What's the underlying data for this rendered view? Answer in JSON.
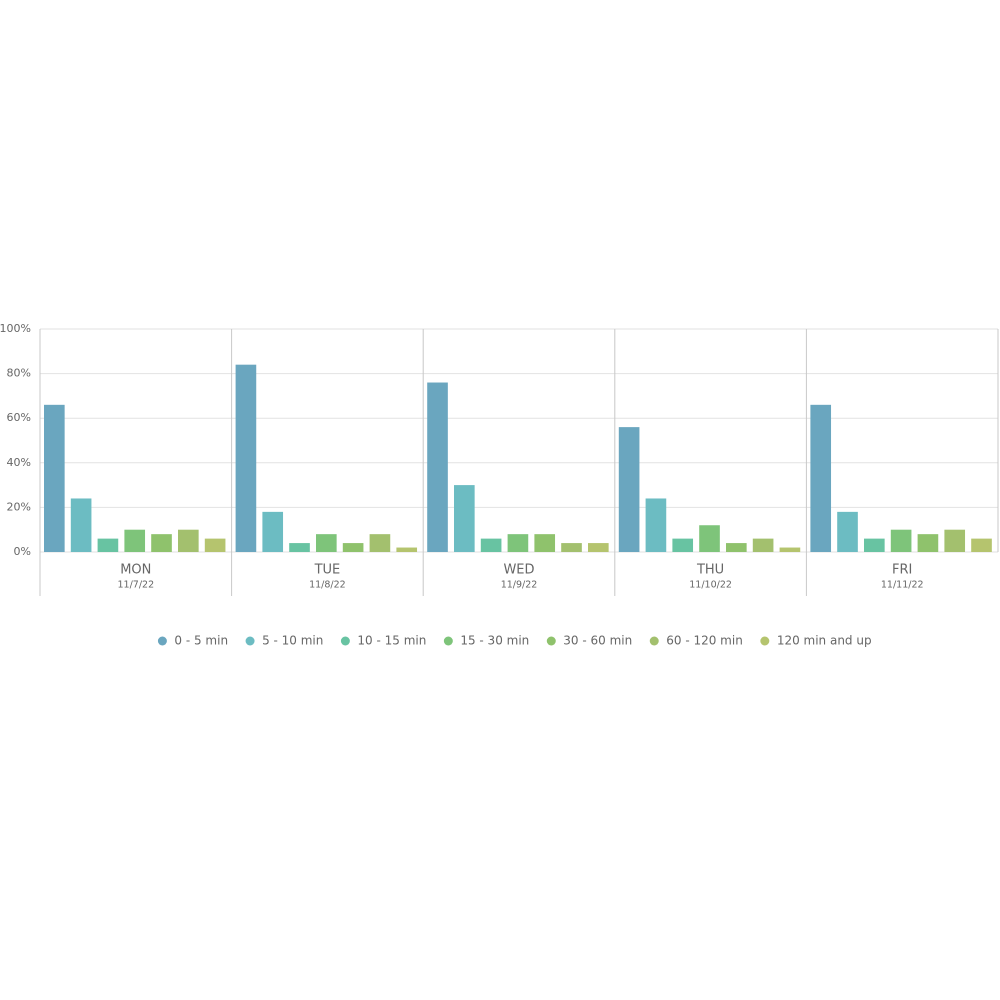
{
  "chart_data": {
    "type": "bar",
    "categories": [
      "MON",
      "TUE",
      "WED",
      "THU",
      "FRI"
    ],
    "dates": [
      "11/7/22",
      "11/8/22",
      "11/9/22",
      "11/10/22",
      "11/11/22"
    ],
    "series": [
      {
        "name": "0 - 5 min",
        "color": "#6aa6bf",
        "values": [
          66,
          84,
          76,
          56,
          66
        ]
      },
      {
        "name": "5 - 10 min",
        "color": "#6cbcc2",
        "values": [
          24,
          18,
          30,
          24,
          18
        ]
      },
      {
        "name": "10 - 15 min",
        "color": "#68c3a2",
        "values": [
          6,
          4,
          6,
          6,
          6
        ]
      },
      {
        "name": "15 - 30 min",
        "color": "#7ec47a",
        "values": [
          10,
          8,
          8,
          12,
          10
        ]
      },
      {
        "name": "30 - 60 min",
        "color": "#8fc26c",
        "values": [
          8,
          4,
          8,
          4,
          8
        ]
      },
      {
        "name": "60 - 120 min",
        "color": "#a3c06e",
        "values": [
          10,
          8,
          4,
          6,
          10
        ]
      },
      {
        "name": "120 min and up",
        "color": "#b5c46e",
        "values": [
          6,
          2,
          4,
          2,
          6
        ]
      }
    ],
    "ylim": [
      0,
      100
    ],
    "yticks": [
      {
        "value": 0,
        "label": "0%"
      },
      {
        "value": 20,
        "label": "20%"
      },
      {
        "value": 40,
        "label": "40%"
      },
      {
        "value": 60,
        "label": "60%"
      },
      {
        "value": 80,
        "label": "80%"
      },
      {
        "value": 100,
        "label": "100%"
      }
    ],
    "grid": true
  }
}
